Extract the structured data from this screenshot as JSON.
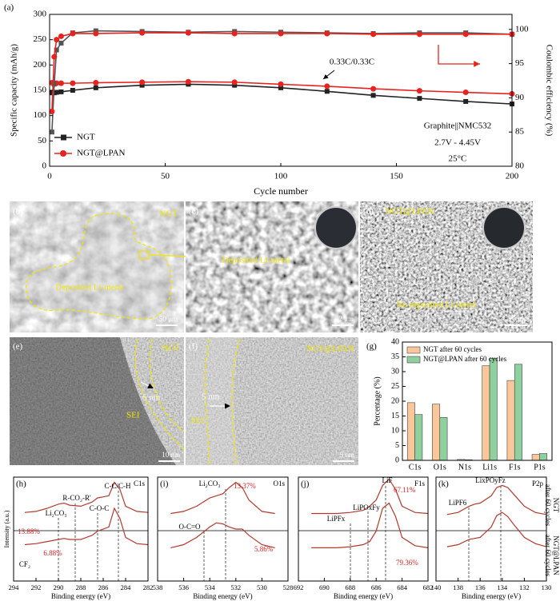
{
  "chart_data": [
    {
      "type": "line",
      "label": "(a)",
      "x": [
        1,
        2,
        3,
        5,
        10,
        20,
        40,
        60,
        80,
        100,
        120,
        140,
        160,
        180,
        200
      ],
      "xlim": [
        0,
        200
      ],
      "xticks": [
        0,
        50,
        100,
        150,
        200
      ],
      "ylim": [
        0,
        300
      ],
      "yticks": [
        0,
        50,
        100,
        150,
        200,
        250,
        300
      ],
      "y2lim": [
        80,
        102.2
      ],
      "y2ticks": [
        80,
        85,
        90,
        95,
        100
      ],
      "xlabel": "Cycle number",
      "ylabel": "Specific capacity (mAh/g)",
      "y2label": "Coulombic efficiency (%)",
      "legend": "lower left",
      "series": [
        {
          "name": "NGT",
          "color": "#222222",
          "marker": "square",
          "values": [
            145,
            145,
            146,
            147,
            150,
            155,
            160,
            162,
            160,
            155,
            148,
            140,
            134,
            128,
            123
          ]
        },
        {
          "name": "NGT@LPAN",
          "color": "#e8231f",
          "marker": "circle",
          "values": [
            165,
            164,
            164,
            164,
            164,
            165,
            166,
            167,
            166,
            162,
            158,
            153,
            149,
            146,
            143
          ]
        },
        {
          "color": "#555555",
          "marker": "square",
          "axis": "y2",
          "values": [
            85,
            92,
            97,
            98,
            99.5,
            99.8,
            99.7,
            99.6,
            99.7,
            99.6,
            99.5,
            99.4,
            99.5,
            99.5,
            99.3
          ]
        },
        {
          "color": "#e8231f",
          "marker": "circle",
          "axis": "y2",
          "values": [
            88,
            96,
            98.5,
            99,
            99.4,
            99.4,
            99.5,
            99.5,
            99.4,
            99.4,
            99.4,
            99.3,
            99.3,
            99.3,
            99.3
          ]
        }
      ],
      "annotations": [
        "0.33C/0.33C",
        "Graphite||NMC532",
        "2.7V - 4.45V",
        "25°C"
      ]
    },
    {
      "type": "bar",
      "label": "(g)",
      "categories": [
        "C1s",
        "O1s",
        "N1s",
        "Li1s",
        "F1s",
        "P1s"
      ],
      "ylim": [
        0,
        40
      ],
      "yticks": [
        0,
        5,
        10,
        15,
        20,
        25,
        30,
        35,
        40
      ],
      "ylabel": "Percentage (%)",
      "legend": "upper left",
      "series": [
        {
          "name": "NGT after 60 cycles",
          "color": "#f9c79a",
          "values": [
            19.5,
            19,
            0.3,
            32,
            27,
            2
          ]
        },
        {
          "name": "NGT@LPAN after 60 cycles",
          "color": "#8fd19e",
          "values": [
            15.5,
            14.5,
            0.2,
            34.5,
            32.5,
            2.3
          ]
        }
      ]
    },
    {
      "type": "line",
      "label": "(h)",
      "xlim": [
        294,
        282
      ],
      "xticks": [
        294,
        292,
        290,
        288,
        286,
        284,
        282
      ],
      "ylim": [
        0,
        100
      ],
      "xlabel": "Binding energy (eV)",
      "ylabel": "Intensity (a.u.)",
      "x": [
        293,
        292,
        291,
        290,
        289.5,
        289,
        288,
        287,
        286.5,
        285.5,
        285,
        284.5,
        284,
        283,
        282
      ],
      "series": [
        {
          "color": "#b03a2e",
          "values": [
            66,
            67,
            70,
            74,
            75,
            73,
            72,
            76,
            80,
            82,
            95,
            88,
            72,
            67,
            66
          ]
        },
        {
          "color": "#b03a2e",
          "values": [
            35,
            36,
            38,
            40,
            41,
            40,
            40,
            44,
            48,
            52,
            70,
            60,
            42,
            36,
            35
          ]
        }
      ],
      "annotations": [
        "C1s",
        "C-C/C-H",
        "R-CO₂-R'",
        "C-O-C",
        "Li₂CO₃",
        "13.88%",
        "6.88%",
        "CF₂"
      ]
    },
    {
      "type": "line",
      "label": "(i)",
      "xlim": [
        538,
        528
      ],
      "xticks": [
        538,
        536,
        534,
        532,
        530,
        528
      ],
      "ylim": [
        0,
        100
      ],
      "xlabel": "Binding energy (eV)",
      "x": [
        537,
        536,
        535,
        534,
        533.5,
        533,
        532.5,
        532,
        531.5,
        531,
        530,
        529
      ],
      "series": [
        {
          "color": "#b03a2e",
          "values": [
            65,
            67,
            72,
            80,
            82,
            84,
            90,
            95,
            90,
            78,
            67,
            65
          ]
        },
        {
          "color": "#b03a2e",
          "values": [
            32,
            35,
            42,
            52,
            56,
            55,
            52,
            50,
            50,
            44,
            35,
            32
          ]
        }
      ],
      "annotations": [
        "O1s",
        "Li₂CO₃",
        "13.37%",
        "O-C=O",
        "5.86%"
      ]
    },
    {
      "type": "line",
      "label": "(j)",
      "xlim": [
        692,
        682
      ],
      "xticks": [
        692,
        690,
        688,
        686,
        684,
        682
      ],
      "ylim": [
        0,
        100
      ],
      "xlabel": "Binding energy (eV)",
      "x": [
        691,
        690,
        689,
        688,
        687,
        686.5,
        686,
        685.5,
        685,
        684.5,
        684,
        683,
        682
      ],
      "series": [
        {
          "color": "#b03a2e",
          "values": [
            65,
            65,
            65,
            66,
            68,
            72,
            78,
            92,
            98,
            88,
            72,
            66,
            65
          ]
        },
        {
          "color": "#b03a2e",
          "values": [
            32,
            32,
            32,
            33,
            35,
            38,
            48,
            70,
            75,
            62,
            42,
            34,
            32
          ]
        }
      ],
      "annotations": [
        "F1s",
        "LiF",
        "67.11%",
        "LiPOxFy",
        "LiPFx",
        "79.36%"
      ]
    },
    {
      "type": "line",
      "label": "(k)",
      "xlim": [
        140,
        130
      ],
      "xticks": [
        140,
        138,
        136,
        134,
        132,
        130
      ],
      "ylim": [
        0,
        100
      ],
      "xlabel": "Binding energy (eV)",
      "x": [
        139,
        138,
        137,
        136.5,
        136,
        135,
        134.5,
        134,
        133.5,
        133,
        132,
        131,
        130
      ],
      "series": [
        {
          "color": "#b03a2e",
          "values": [
            64,
            66,
            72,
            74,
            75,
            82,
            90,
            92,
            90,
            84,
            72,
            66,
            64
          ]
        },
        {
          "color": "#b03a2e",
          "values": [
            33,
            35,
            40,
            41,
            42,
            52,
            63,
            66,
            62,
            55,
            42,
            36,
            33
          ]
        }
      ],
      "annotations": [
        "P2p",
        "LixPOyFz",
        "LiPF6"
      ]
    }
  ],
  "images": [
    {
      "label": "(b)",
      "texts": [
        "NGT",
        "Deposited Li-metal",
        "50 μm"
      ]
    },
    {
      "label": "(c)",
      "texts": [
        "Deposited Li-metal",
        "2 μm"
      ]
    },
    {
      "label": "(d)",
      "texts": [
        "NGT@LPAN",
        "No deposited Li-metal",
        "20 μm"
      ]
    },
    {
      "label": "(e)",
      "texts": [
        "NGT",
        "5 nm",
        "SEI",
        "10 nm"
      ]
    },
    {
      "label": "(f)",
      "texts": [
        "NGT@LPAN",
        "5 nm",
        "SEI",
        "5 nm"
      ]
    }
  ],
  "side_labels": [
    [
      "NGT",
      "after 60 cycles"
    ],
    [
      "NGT@LPAN",
      "after 60 cycles"
    ]
  ]
}
